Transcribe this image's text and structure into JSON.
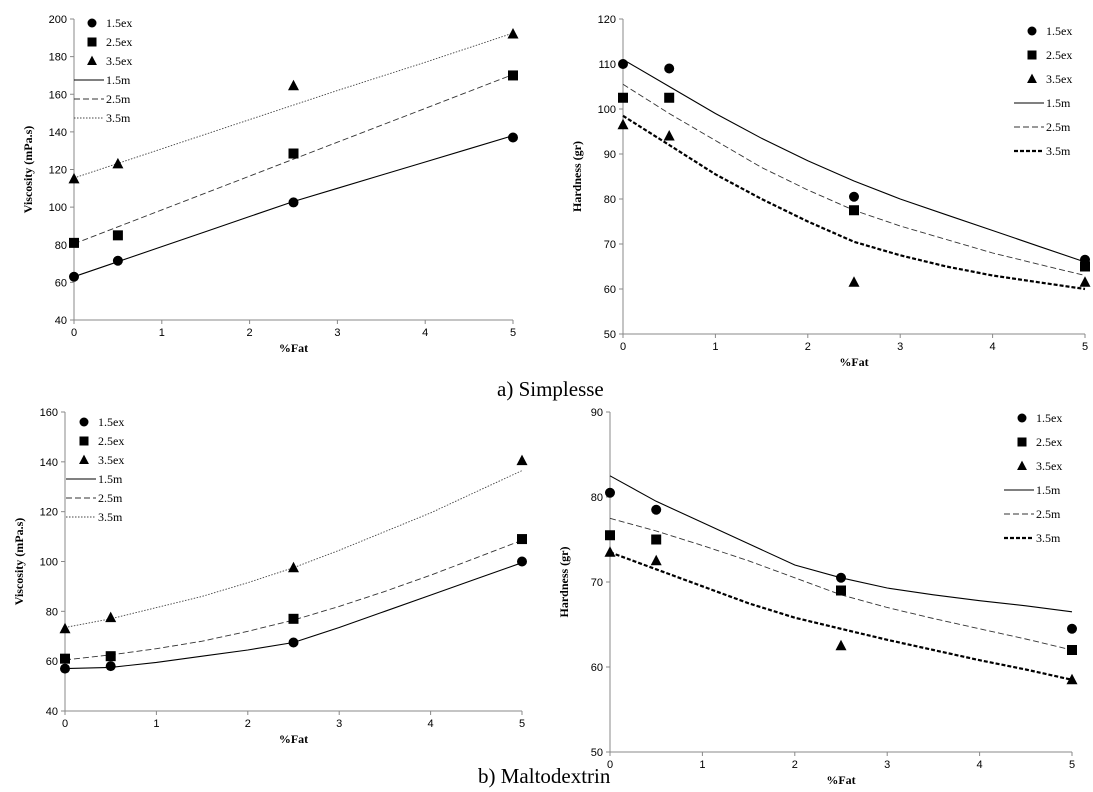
{
  "captions": {
    "a": "a) Simplesse",
    "b": "b) Maltodextrin"
  },
  "chart_data": [
    {
      "id": "simplesse-viscosity",
      "type": "scatter",
      "xlabel": "%Fat",
      "ylabel": "Viscosity (mPa.s)",
      "xlim": [
        0,
        5
      ],
      "ylim": [
        40,
        200
      ],
      "xticks": [
        0,
        1,
        2,
        3,
        4,
        5
      ],
      "yticks": [
        40,
        60,
        80,
        100,
        120,
        140,
        160,
        180,
        200
      ],
      "legend_position": "top-left",
      "series": [
        {
          "name": "1.5ex",
          "kind": "points",
          "marker": "circle",
          "x": [
            0,
            0.5,
            2.5,
            5
          ],
          "y": [
            63,
            71.5,
            102.5,
            137
          ]
        },
        {
          "name": "2.5ex",
          "kind": "points",
          "marker": "square",
          "x": [
            0,
            0.5,
            2.5,
            5
          ],
          "y": [
            81,
            85,
            128.5,
            170
          ]
        },
        {
          "name": "3.5ex",
          "kind": "points",
          "marker": "triangle",
          "x": [
            0,
            0.5,
            2.5,
            5
          ],
          "y": [
            115,
            123,
            164.5,
            192
          ]
        },
        {
          "name": "1.5m",
          "kind": "line",
          "dash": "solid",
          "x": [
            0,
            0.5,
            1,
            1.5,
            2,
            2.5,
            3,
            3.5,
            4,
            4.5,
            5
          ],
          "y": [
            63,
            71,
            79,
            87,
            95,
            103,
            110,
            117,
            124,
            131,
            138
          ]
        },
        {
          "name": "2.5m",
          "kind": "line",
          "dash": "dashed",
          "x": [
            0,
            1,
            2,
            3,
            4,
            5
          ],
          "y": [
            80.5,
            98.5,
            116.5,
            134.5,
            152.5,
            170.5
          ]
        },
        {
          "name": "3.5m",
          "kind": "line",
          "dash": "dotted",
          "x": [
            0,
            1,
            2,
            3,
            4,
            5
          ],
          "y": [
            115.5,
            131,
            146.5,
            162,
            177,
            192.5
          ]
        }
      ]
    },
    {
      "id": "simplesse-hardness",
      "type": "scatter",
      "xlabel": "%Fat",
      "ylabel": "Hardness (gr)",
      "xlim": [
        0,
        5
      ],
      "ylim": [
        50,
        120
      ],
      "xticks": [
        0,
        1,
        2,
        3,
        4,
        5
      ],
      "yticks": [
        50,
        60,
        70,
        80,
        90,
        100,
        110,
        120
      ],
      "legend_position": "top-right",
      "series": [
        {
          "name": "1.5ex",
          "kind": "points",
          "marker": "circle",
          "x": [
            0,
            0.5,
            2.5,
            5
          ],
          "y": [
            110,
            109,
            80.5,
            66.5
          ]
        },
        {
          "name": "2.5ex",
          "kind": "points",
          "marker": "square",
          "x": [
            0,
            0.5,
            2.5,
            5
          ],
          "y": [
            102.5,
            102.5,
            77.5,
            65
          ]
        },
        {
          "name": "3.5ex",
          "kind": "points",
          "marker": "triangle",
          "x": [
            0,
            0.5,
            2.5,
            5
          ],
          "y": [
            96.5,
            94,
            61.5,
            61.5
          ]
        },
        {
          "name": "1.5m",
          "kind": "line",
          "dash": "solid",
          "x": [
            0,
            0.5,
            1,
            1.5,
            2,
            2.5,
            3,
            3.5,
            4,
            4.5,
            5
          ],
          "y": [
            111,
            105,
            99,
            93.5,
            88.5,
            84,
            80,
            76.5,
            73,
            69.5,
            66
          ]
        },
        {
          "name": "2.5m",
          "kind": "line",
          "dash": "dashed",
          "x": [
            0,
            0.5,
            1,
            1.5,
            2,
            2.5,
            3,
            3.5,
            4,
            4.5,
            5
          ],
          "y": [
            105.5,
            99,
            93,
            87,
            82,
            77.5,
            74,
            71,
            68,
            65.5,
            63
          ]
        },
        {
          "name": "3.5m",
          "kind": "line",
          "dash": "thick-dashed",
          "x": [
            0,
            0.5,
            1,
            1.5,
            2,
            2.5,
            3,
            3.5,
            4,
            4.5,
            5
          ],
          "y": [
            98.5,
            92,
            85.5,
            80,
            75,
            70.5,
            67.5,
            65,
            63,
            61.5,
            60
          ]
        }
      ]
    },
    {
      "id": "maltodextrin-viscosity",
      "type": "scatter",
      "xlabel": "%Fat",
      "ylabel": "Viscosity (mPa.s)",
      "xlim": [
        0,
        5
      ],
      "ylim": [
        40,
        160
      ],
      "xticks": [
        0,
        1,
        2,
        3,
        4,
        5
      ],
      "yticks": [
        40,
        60,
        80,
        100,
        120,
        140,
        160
      ],
      "legend_position": "top-left",
      "series": [
        {
          "name": "1.5ex",
          "kind": "points",
          "marker": "circle",
          "x": [
            0,
            0.5,
            2.5,
            5
          ],
          "y": [
            57,
            58,
            67.5,
            100
          ]
        },
        {
          "name": "2.5ex",
          "kind": "points",
          "marker": "square",
          "x": [
            0,
            0.5,
            2.5,
            5
          ],
          "y": [
            61,
            62,
            77,
            109
          ]
        },
        {
          "name": "3.5ex",
          "kind": "points",
          "marker": "triangle",
          "x": [
            0,
            0.5,
            2.5,
            5
          ],
          "y": [
            73,
            77.5,
            97.5,
            140.5
          ]
        },
        {
          "name": "1.5m",
          "kind": "line",
          "dash": "solid",
          "x": [
            0,
            0.5,
            1,
            1.5,
            2,
            2.5,
            3,
            3.5,
            4,
            4.5,
            5
          ],
          "y": [
            57,
            57.5,
            59.5,
            62,
            64.5,
            67.5,
            73.5,
            80,
            86.5,
            93,
            99.5
          ]
        },
        {
          "name": "2.5m",
          "kind": "line",
          "dash": "dashed",
          "x": [
            0,
            0.5,
            1,
            1.5,
            2,
            2.5,
            3,
            3.5,
            4,
            4.5,
            5
          ],
          "y": [
            60.5,
            62.5,
            65,
            68,
            72,
            76.5,
            82,
            88,
            94.5,
            101.5,
            108.5
          ]
        },
        {
          "name": "3.5m",
          "kind": "line",
          "dash": "dotted",
          "x": [
            0,
            0.5,
            1,
            1.5,
            2,
            2.5,
            3,
            3.5,
            4,
            4.5,
            5
          ],
          "y": [
            73.5,
            77,
            81.5,
            86,
            91.5,
            97.5,
            104.5,
            112,
            119.5,
            128,
            136.5
          ]
        }
      ]
    },
    {
      "id": "maltodextrin-hardness",
      "type": "scatter",
      "xlabel": "%Fat",
      "ylabel": "Hardness (gr)",
      "xlim": [
        0,
        5
      ],
      "ylim": [
        50,
        90
      ],
      "xticks": [
        0,
        1,
        2,
        3,
        4,
        5
      ],
      "yticks": [
        50,
        60,
        70,
        80,
        90
      ],
      "legend_position": "top-right",
      "series": [
        {
          "name": "1.5ex",
          "kind": "points",
          "marker": "circle",
          "x": [
            0,
            0.5,
            2.5,
            5
          ],
          "y": [
            80.5,
            78.5,
            70.5,
            64.5
          ]
        },
        {
          "name": "2.5ex",
          "kind": "points",
          "marker": "square",
          "x": [
            0,
            0.5,
            2.5,
            5
          ],
          "y": [
            75.5,
            75,
            69,
            62
          ]
        },
        {
          "name": "3.5ex",
          "kind": "points",
          "marker": "triangle",
          "x": [
            0,
            0.5,
            2.5,
            5
          ],
          "y": [
            73.5,
            72.5,
            62.5,
            58.5
          ]
        },
        {
          "name": "1.5m",
          "kind": "line",
          "dash": "solid",
          "x": [
            0,
            0.5,
            1,
            1.5,
            2,
            2.5,
            3,
            3.5,
            4,
            4.5,
            5
          ],
          "y": [
            82.5,
            79.5,
            77,
            74.5,
            72,
            70.5,
            69.3,
            68.5,
            67.8,
            67.2,
            66.5
          ]
        },
        {
          "name": "2.5m",
          "kind": "line",
          "dash": "dashed",
          "x": [
            0,
            0.5,
            1,
            1.5,
            2,
            2.5,
            3,
            3.5,
            4,
            4.5,
            5
          ],
          "y": [
            77.5,
            76,
            74.3,
            72.5,
            70.5,
            68.5,
            67,
            65.7,
            64.5,
            63.3,
            62
          ]
        },
        {
          "name": "3.5m",
          "kind": "line",
          "dash": "thick-dashed",
          "x": [
            0,
            0.5,
            1,
            1.5,
            2,
            2.5,
            3,
            3.5,
            4,
            4.5,
            5
          ],
          "y": [
            73.5,
            71.5,
            69.5,
            67.5,
            65.8,
            64.5,
            63.2,
            62,
            60.8,
            59.7,
            58.5
          ]
        }
      ]
    }
  ]
}
